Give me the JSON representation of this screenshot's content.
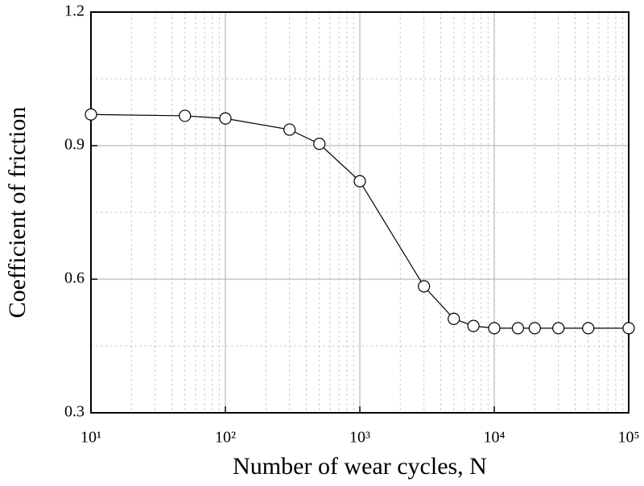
{
  "chart_data": {
    "type": "line",
    "x_label": "Number of wear cycles, N",
    "y_label": "Coefficient of friction",
    "x": [
      10,
      50,
      100,
      300,
      500,
      1000,
      3000,
      5000,
      7000,
      10000,
      15000,
      20000,
      30000,
      50000,
      100000
    ],
    "series": [
      {
        "name": "Coefficient of friction",
        "color": "#000000",
        "values": [
          0.97,
          0.967,
          0.961,
          0.936,
          0.904,
          0.82,
          0.584,
          0.511,
          0.495,
          0.49,
          0.49,
          0.49,
          0.49,
          0.49,
          0.49
        ]
      }
    ],
    "xscale": "log",
    "xlim": [
      10,
      100000
    ],
    "xticks": [
      {
        "value": 10,
        "label": "10¹"
      },
      {
        "value": 100,
        "label": "10²"
      },
      {
        "value": 1000,
        "label": "10³"
      },
      {
        "value": 10000,
        "label": "10⁴"
      },
      {
        "value": 100000,
        "label": "10⁵"
      }
    ],
    "ylim": [
      0.3,
      1.2
    ],
    "yticks": [
      0.3,
      0.6,
      0.9,
      1.2
    ],
    "grid": true
  }
}
